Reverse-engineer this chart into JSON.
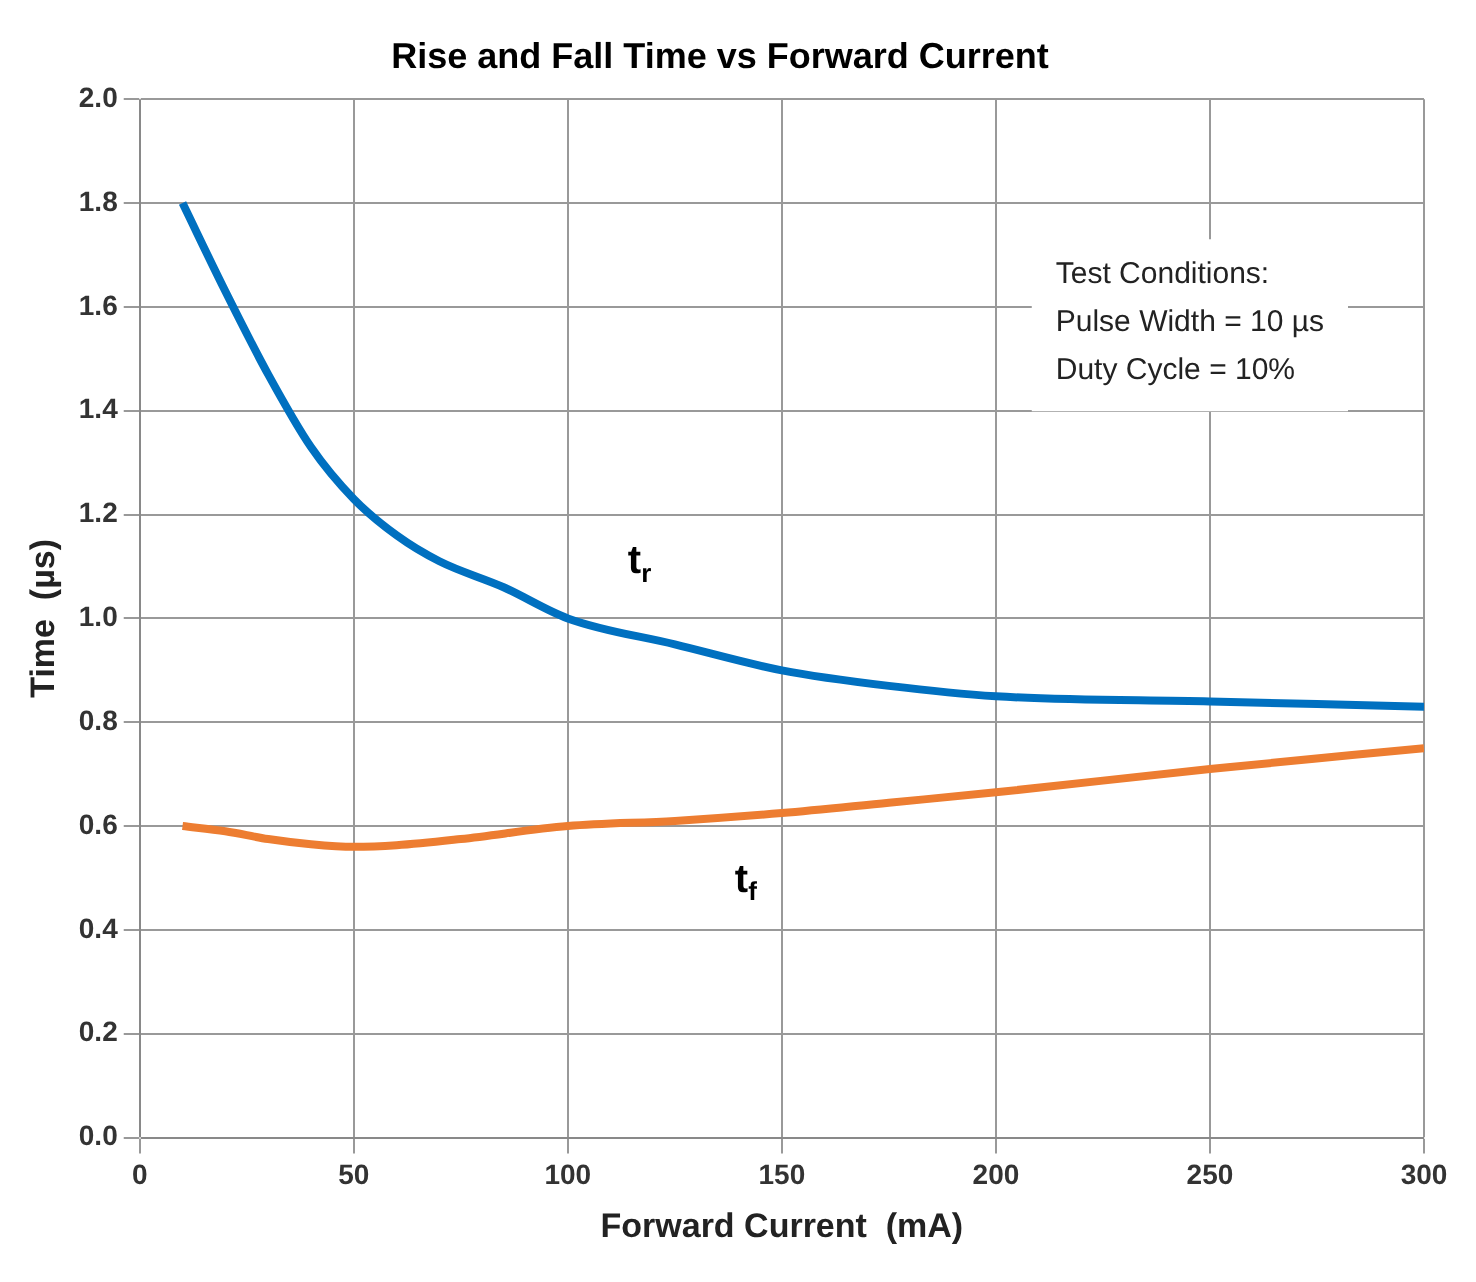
{
  "chart_data": {
    "type": "line",
    "title": "Rise and Fall Time vs Forward Current",
    "xlabel": "Forward Current  (mA)",
    "ylabel": "Time  (µs)",
    "xlim": [
      0,
      300
    ],
    "xticks": [
      0,
      50,
      100,
      150,
      200,
      250,
      300
    ],
    "ylim": [
      0,
      2
    ],
    "yticks": [
      {
        "value": 0,
        "label": "0.0"
      },
      0.2,
      0.4,
      0.6,
      0.8,
      {
        "value": 1,
        "label": "1.0"
      },
      1.2,
      1.4,
      1.6,
      1.8,
      {
        "value": 2,
        "label": "2.0"
      }
    ],
    "grid": true,
    "legend": false,
    "marker": "none",
    "line_style": "solid",
    "series": [
      {
        "name": "t$_{r}$",
        "color": "#0070c0",
        "x": [
          10,
          20,
          30,
          40,
          50,
          60,
          70,
          85,
          100,
          125,
          150,
          175,
          200,
          250,
          300
        ],
        "values": [
          1.8,
          1.63,
          1.47,
          1.33,
          1.23,
          1.16,
          1.11,
          1.06,
          1.0,
          0.95,
          0.9,
          0.87,
          0.85,
          0.84,
          0.83
        ]
      },
      {
        "name": "t$_{f}$",
        "color": "#ed7d31",
        "x": [
          10,
          20,
          30,
          40,
          50,
          60,
          75,
          100,
          125,
          150,
          175,
          200,
          250,
          300
        ],
        "values": [
          0.6,
          0.59,
          0.575,
          0.565,
          0.56,
          0.563,
          0.575,
          0.6,
          0.61,
          0.625,
          0.645,
          0.665,
          0.71,
          0.75
        ]
      }
    ],
    "annotations": [
      "Test Conditions:",
      "Pulse Width = 10 µs",
      "Duty Cycle = 10%"
    ]
  }
}
